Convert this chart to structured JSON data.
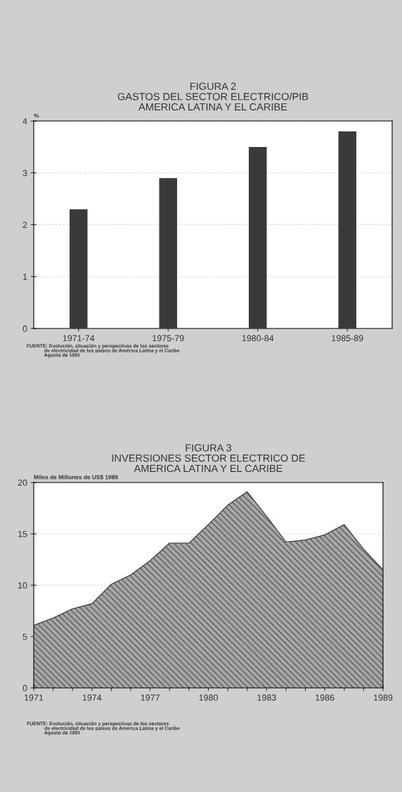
{
  "chart_data": [
    {
      "type": "bar",
      "title": "FIGURA 2\nGASTOS DEL SECTOR ELECTRICO/PIB\nAMERICA LATINA Y EL CARIBE",
      "ylabel": "%",
      "categories": [
        "1971-74",
        "1975-79",
        "1980-84",
        "1985-89"
      ],
      "values": [
        2.3,
        2.9,
        3.5,
        3.8
      ],
      "color": "#3a3a3a",
      "ylim": [
        0,
        4
      ],
      "yticks": [
        0,
        1,
        2,
        3,
        4
      ],
      "grid": "y",
      "annotations": [
        "FUENTE: Evolución, situación y perspectivas de los sectores\n             de electricidad de los países de América Latina y el Caribe\n             Agosto de 1991"
      ]
    },
    {
      "type": "area",
      "title": "FIGURA 3\nINVERSIONES SECTOR ELECTRICO DE\nAMERICA LATINA Y EL CARIBE",
      "ylabel": "Miles de Millones de US$ 1989",
      "x": [
        1971,
        1972,
        1973,
        1974,
        1975,
        1976,
        1977,
        1978,
        1979,
        1980,
        1981,
        1982,
        1983,
        1984,
        1985,
        1986,
        1987,
        1988,
        1989
      ],
      "values": [
        6.1,
        6.8,
        7.7,
        8.2,
        10.1,
        11.0,
        12.4,
        14.1,
        14.1,
        15.9,
        17.8,
        19.1,
        16.7,
        14.2,
        14.4,
        14.9,
        15.9,
        13.5,
        11.5
      ],
      "color": "#a8a8a8",
      "xlim": [
        1971,
        1989
      ],
      "xticks": [
        1971,
        {
          "value": 1972,
          "label": null
        },
        {
          "value": 1973,
          "label": null
        },
        1974,
        {
          "value": 1975,
          "label": null
        },
        {
          "value": 1976,
          "label": null
        },
        1977,
        {
          "value": 1978,
          "label": null
        },
        {
          "value": 1979,
          "label": null
        },
        1980,
        {
          "value": 1981,
          "label": null
        },
        {
          "value": 1982,
          "label": null
        },
        1983,
        {
          "value": 1984,
          "label": null
        },
        {
          "value": 1985,
          "label": null
        },
        1986,
        {
          "value": 1987,
          "label": null
        },
        {
          "value": 1988,
          "label": null
        },
        1989
      ],
      "ylim": [
        0,
        20
      ],
      "yticks": [
        0,
        5,
        10,
        15,
        20
      ],
      "grid": "y",
      "annotations": [
        "FUENTE: Evolución, situación y perspectivas de los sectores\n             de electricidad de los países de América Latina y el Caribe\n             Agosto de 1991"
      ]
    }
  ]
}
